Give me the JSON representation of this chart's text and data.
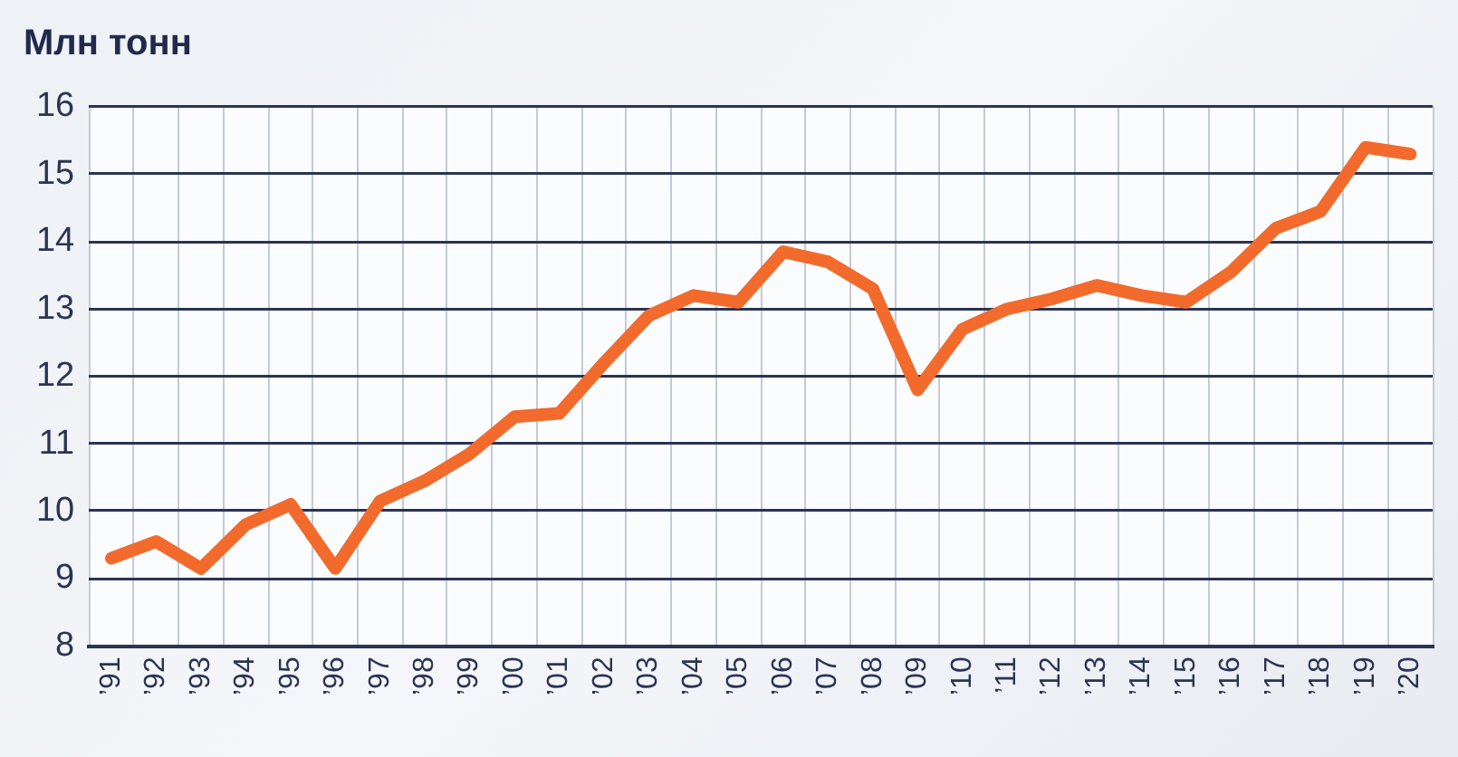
{
  "chart_data": {
    "type": "line",
    "ylabel": "Млн тонн",
    "categories": [
      "’91",
      "’92",
      "’93",
      "’94",
      "’95",
      "’96",
      "’97",
      "’98",
      "’99",
      "’00",
      "’01",
      "’02",
      "’03",
      "’04",
      "’05",
      "’06",
      "’07",
      "’08",
      "’09",
      "’10",
      "’11",
      "’12",
      "’13",
      "’14",
      "’15",
      "’16",
      "’17",
      "’18",
      "’19",
      "’20"
    ],
    "series": [
      {
        "color": "#f26a2c",
        "values": [
          9.3,
          9.55,
          9.15,
          9.8,
          10.1,
          9.15,
          10.15,
          10.45,
          10.85,
          11.4,
          11.45,
          12.2,
          12.9,
          13.2,
          13.1,
          13.85,
          13.7,
          13.3,
          11.8,
          12.7,
          13.0,
          13.15,
          13.35,
          13.2,
          13.1,
          13.55,
          14.2,
          14.45,
          15.4,
          15.3
        ]
      }
    ],
    "ylim": [
      8,
      16
    ],
    "yticks": [
      8,
      9,
      10,
      11,
      12,
      13,
      14,
      15,
      16
    ],
    "grid": true
  }
}
